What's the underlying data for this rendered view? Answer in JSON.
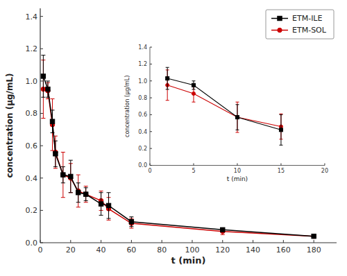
{
  "chart_data": [
    {
      "type": "line",
      "xlabel": "t (min)",
      "ylabel": "concentration (μg/mL)",
      "x": [
        2,
        5,
        8,
        10,
        15,
        20,
        25,
        30,
        40,
        45,
        60,
        120,
        180
      ],
      "series": [
        {
          "name": "ETM-ILE",
          "color": "#000000",
          "marker": "square",
          "values": [
            1.03,
            0.95,
            0.75,
            0.55,
            0.42,
            0.41,
            0.31,
            0.3,
            0.24,
            0.23,
            0.13,
            0.08,
            0.04
          ],
          "yerr": [
            0.13,
            0.05,
            0.07,
            0.08,
            0.05,
            0.1,
            0.06,
            0.04,
            0.07,
            0.08,
            0.03,
            0.01,
            0.01
          ]
        },
        {
          "name": "ETM-SOL",
          "color": "#cc0000",
          "marker": "circle",
          "values": [
            0.95,
            0.94,
            0.73,
            0.56,
            0.42,
            0.4,
            0.32,
            0.3,
            0.26,
            0.21,
            0.12,
            0.07,
            0.04
          ],
          "yerr": [
            0.18,
            0.05,
            0.16,
            0.1,
            0.14,
            0.09,
            0.1,
            0.05,
            0.06,
            0.07,
            0.03,
            0.02,
            0.01
          ]
        }
      ],
      "xlim": [
        0,
        195
      ],
      "ylim": [
        0,
        1.45
      ],
      "xticks": [
        0,
        20,
        40,
        60,
        80,
        100,
        120,
        140,
        160,
        180
      ],
      "yticks": [
        {
          "value": 0,
          "label": "0.0"
        },
        0.2,
        0.4,
        0.6,
        0.8,
        {
          "value": 1,
          "label": "1.0"
        },
        1.2,
        1.4
      ],
      "legend": "upper right"
    },
    {
      "type": "line",
      "xlabel": "t (min)",
      "ylabel": "concentration (μg/mL)",
      "x": [
        2,
        5,
        10,
        15
      ],
      "series": [
        {
          "color": "#000000",
          "marker": "square",
          "values": [
            1.03,
            0.95,
            0.57,
            0.42
          ],
          "yerr": [
            0.13,
            0.05,
            0.15,
            0.18
          ]
        },
        {
          "color": "#cc0000",
          "marker": "circle",
          "values": [
            0.95,
            0.85,
            0.57,
            0.46
          ],
          "yerr": [
            0.18,
            0.1,
            0.18,
            0.15
          ]
        }
      ],
      "xlim": [
        0,
        20
      ],
      "ylim": [
        0,
        1.4
      ],
      "xticks": [
        0,
        5,
        10,
        15,
        20
      ],
      "yticks": [
        {
          "value": 0,
          "label": "0.0"
        },
        0.2,
        0.4,
        0.6,
        0.8,
        {
          "value": 1,
          "label": "1.0"
        },
        1.2,
        1.4
      ]
    }
  ]
}
